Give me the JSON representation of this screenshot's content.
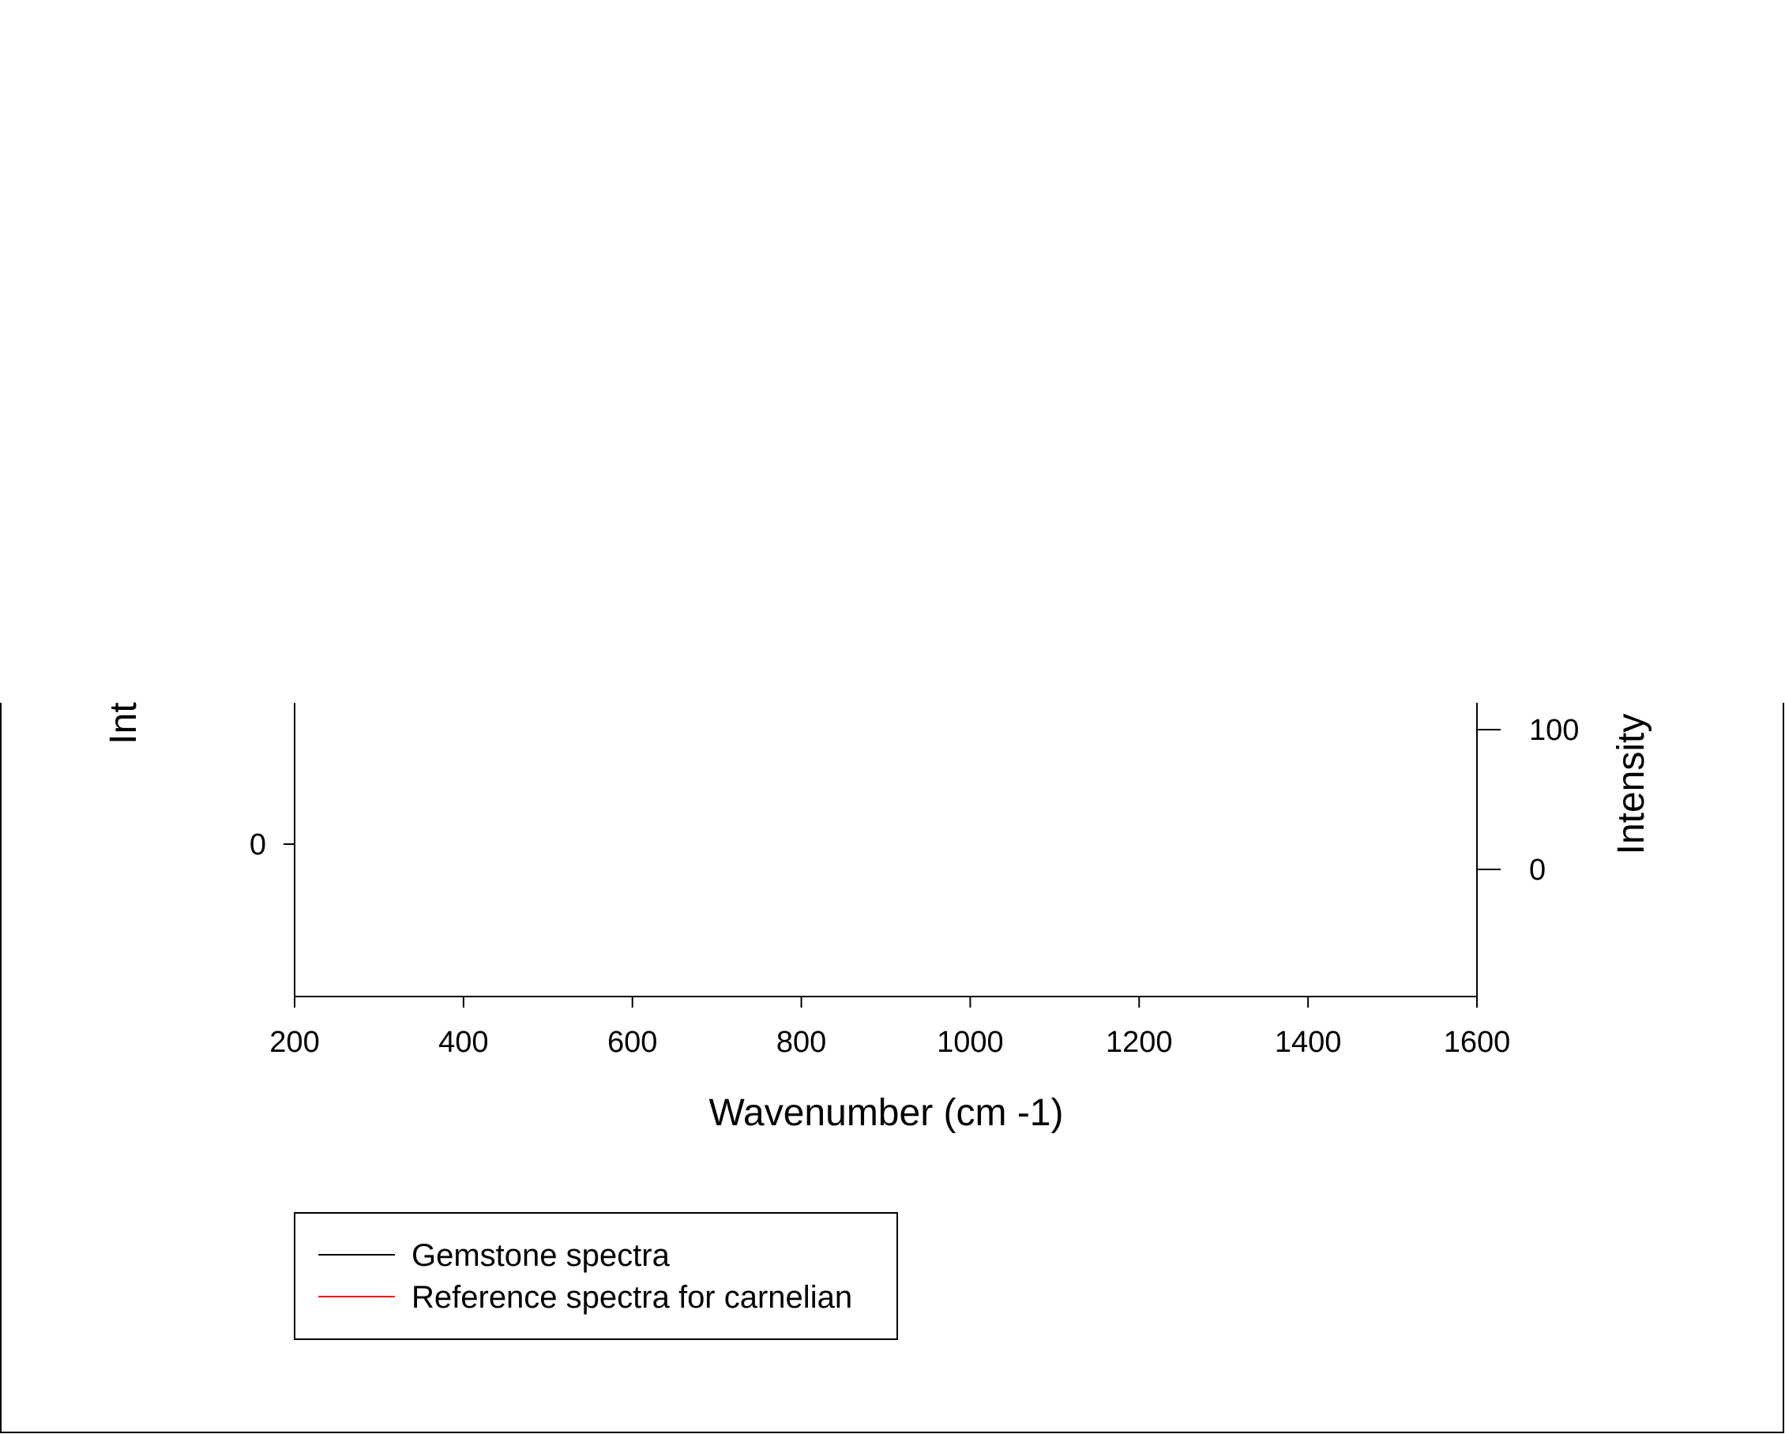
{
  "chart_data": {
    "type": "line",
    "title": "",
    "xlabel": "Wavenumber (cm -1)",
    "ylabel_left": "Int",
    "ylabel_right": "Intensity",
    "xlim": [
      200,
      1600
    ],
    "x_ticks": [
      200,
      400,
      600,
      800,
      1000,
      1200,
      1400,
      1600
    ],
    "y_left_ticks": [
      0
    ],
    "y_right_ticks": [
      0,
      100
    ],
    "grid": false,
    "legend_position": "bottom-left",
    "series": [
      {
        "name": "Gemstone spectra",
        "color": "#000000",
        "axis": "left",
        "x": [],
        "y": []
      },
      {
        "name": "Reference spectra for carnelian",
        "color": "#ff0000",
        "axis": "right",
        "x": [],
        "y": []
      }
    ]
  }
}
